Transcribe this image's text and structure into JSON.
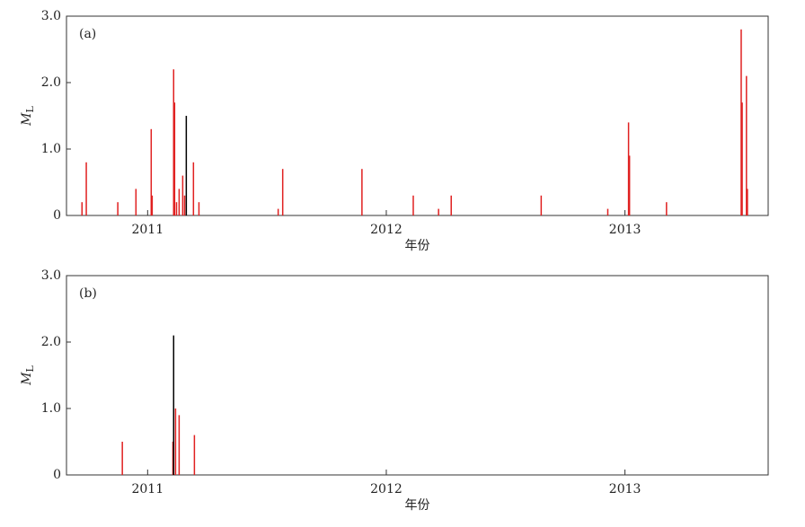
{
  "chart_data": [
    {
      "type": "stem",
      "panel_label": "(a)",
      "x_label": "年份",
      "y_label": "M",
      "y_label_subscript": "L",
      "xlim": [
        2010.66,
        2013.6
      ],
      "xticks": [
        2011,
        2012,
        2013
      ],
      "ylim": [
        0,
        3
      ],
      "yticks": [
        {
          "value": 0,
          "label": "0"
        },
        {
          "value": 1,
          "label": "1.0"
        },
        {
          "value": 2,
          "label": "2.0"
        },
        {
          "value": 3,
          "label": "3.0"
        }
      ],
      "series": [
        {
          "color": "#e02020",
          "x": [
            2010.725,
            2010.743,
            2010.875,
            2010.951,
            2011.015,
            2011.019,
            2011.109,
            2011.113,
            2011.121,
            2011.132,
            2011.147,
            2011.155,
            2011.192,
            2011.215,
            2011.547,
            2011.566,
            2011.898,
            2012.113,
            2012.219,
            2012.272,
            2012.649,
            2012.928,
            2013.015,
            2013.019,
            2013.174,
            2013.487,
            2013.491,
            2013.509,
            2013.513
          ],
          "values": [
            0.2,
            0.8,
            0.2,
            0.4,
            1.3,
            0.3,
            2.2,
            1.7,
            0.2,
            0.4,
            0.6,
            0.3,
            0.8,
            0.2,
            0.1,
            0.7,
            0.7,
            0.3,
            0.1,
            0.3,
            0.3,
            0.1,
            1.4,
            0.9,
            0.2,
            2.8,
            1.7,
            2.1,
            0.4
          ]
        },
        {
          "color": "#000000",
          "x": [
            2011.162
          ],
          "values": [
            1.5
          ]
        }
      ]
    },
    {
      "type": "stem",
      "panel_label": "(b)",
      "x_label": "年份",
      "y_label": "M",
      "y_label_subscript": "L",
      "xlim": [
        2010.66,
        2013.6
      ],
      "xticks": [
        2011,
        2012,
        2013
      ],
      "ylim": [
        0,
        3
      ],
      "yticks": [
        {
          "value": 0,
          "label": "0"
        },
        {
          "value": 1,
          "label": "1.0"
        },
        {
          "value": 2,
          "label": "2.0"
        },
        {
          "value": 3,
          "label": "3.0"
        }
      ],
      "series": [
        {
          "color": "#e02020",
          "x": [
            2010.894,
            2011.106,
            2011.117,
            2011.132,
            2011.196
          ],
          "values": [
            0.5,
            0.5,
            1.0,
            0.9,
            0.6
          ]
        },
        {
          "color": "#000000",
          "x": [
            2011.109
          ],
          "values": [
            2.1
          ]
        }
      ]
    }
  ]
}
